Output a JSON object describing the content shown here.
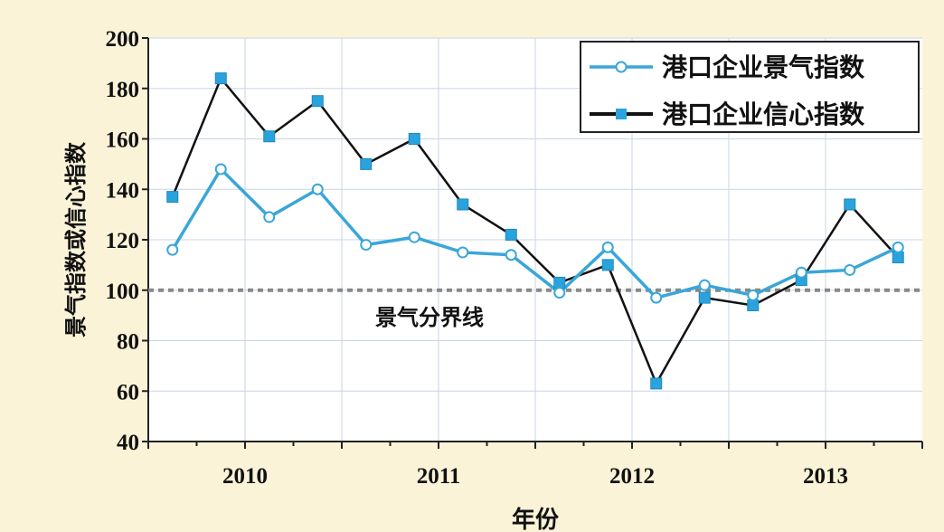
{
  "chart_data": {
    "type": "line",
    "xlabel": "年份",
    "ylabel": "景气指数或信心指数",
    "ylim": [
      40,
      200
    ],
    "yticks": [
      40,
      60,
      80,
      100,
      120,
      140,
      160,
      180,
      200
    ],
    "xticks": [
      {
        "label": "2010",
        "x": 2010
      },
      {
        "label": "2011",
        "x": 2011
      },
      {
        "label": "2012",
        "x": 2012
      },
      {
        "label": "2013",
        "x": 2013
      }
    ],
    "xlim": [
      2009.5,
      2013.5
    ],
    "x": [
      2009.625,
      2009.875,
      2010.125,
      2010.375,
      2010.625,
      2010.875,
      2011.125,
      2011.375,
      2011.625,
      2011.875,
      2012.125,
      2012.375,
      2012.625,
      2012.875,
      2013.125,
      2013.375
    ],
    "series": [
      {
        "name": "港口企业景气指数",
        "color": "#3aa6d8",
        "marker": "hollow-circle",
        "values": [
          116,
          148,
          129,
          140,
          118,
          121,
          115,
          114,
          99,
          117,
          97,
          102,
          98,
          107,
          108,
          117
        ]
      },
      {
        "name": "港口企业信心指数",
        "color": "#111111",
        "marker": "filled-square-blue",
        "values": [
          137,
          184,
          161,
          175,
          150,
          160,
          134,
          122,
          103,
          110,
          63,
          97,
          94,
          104,
          134,
          113
        ]
      }
    ],
    "reference_line": {
      "value": 100,
      "label": "景气分界线",
      "color": "#888888"
    },
    "grid": true,
    "legend_position": "top-right",
    "colors": {
      "background": "#fbf3d8",
      "plot_background": "#ffffff",
      "grid": "#c8d6e6"
    }
  }
}
